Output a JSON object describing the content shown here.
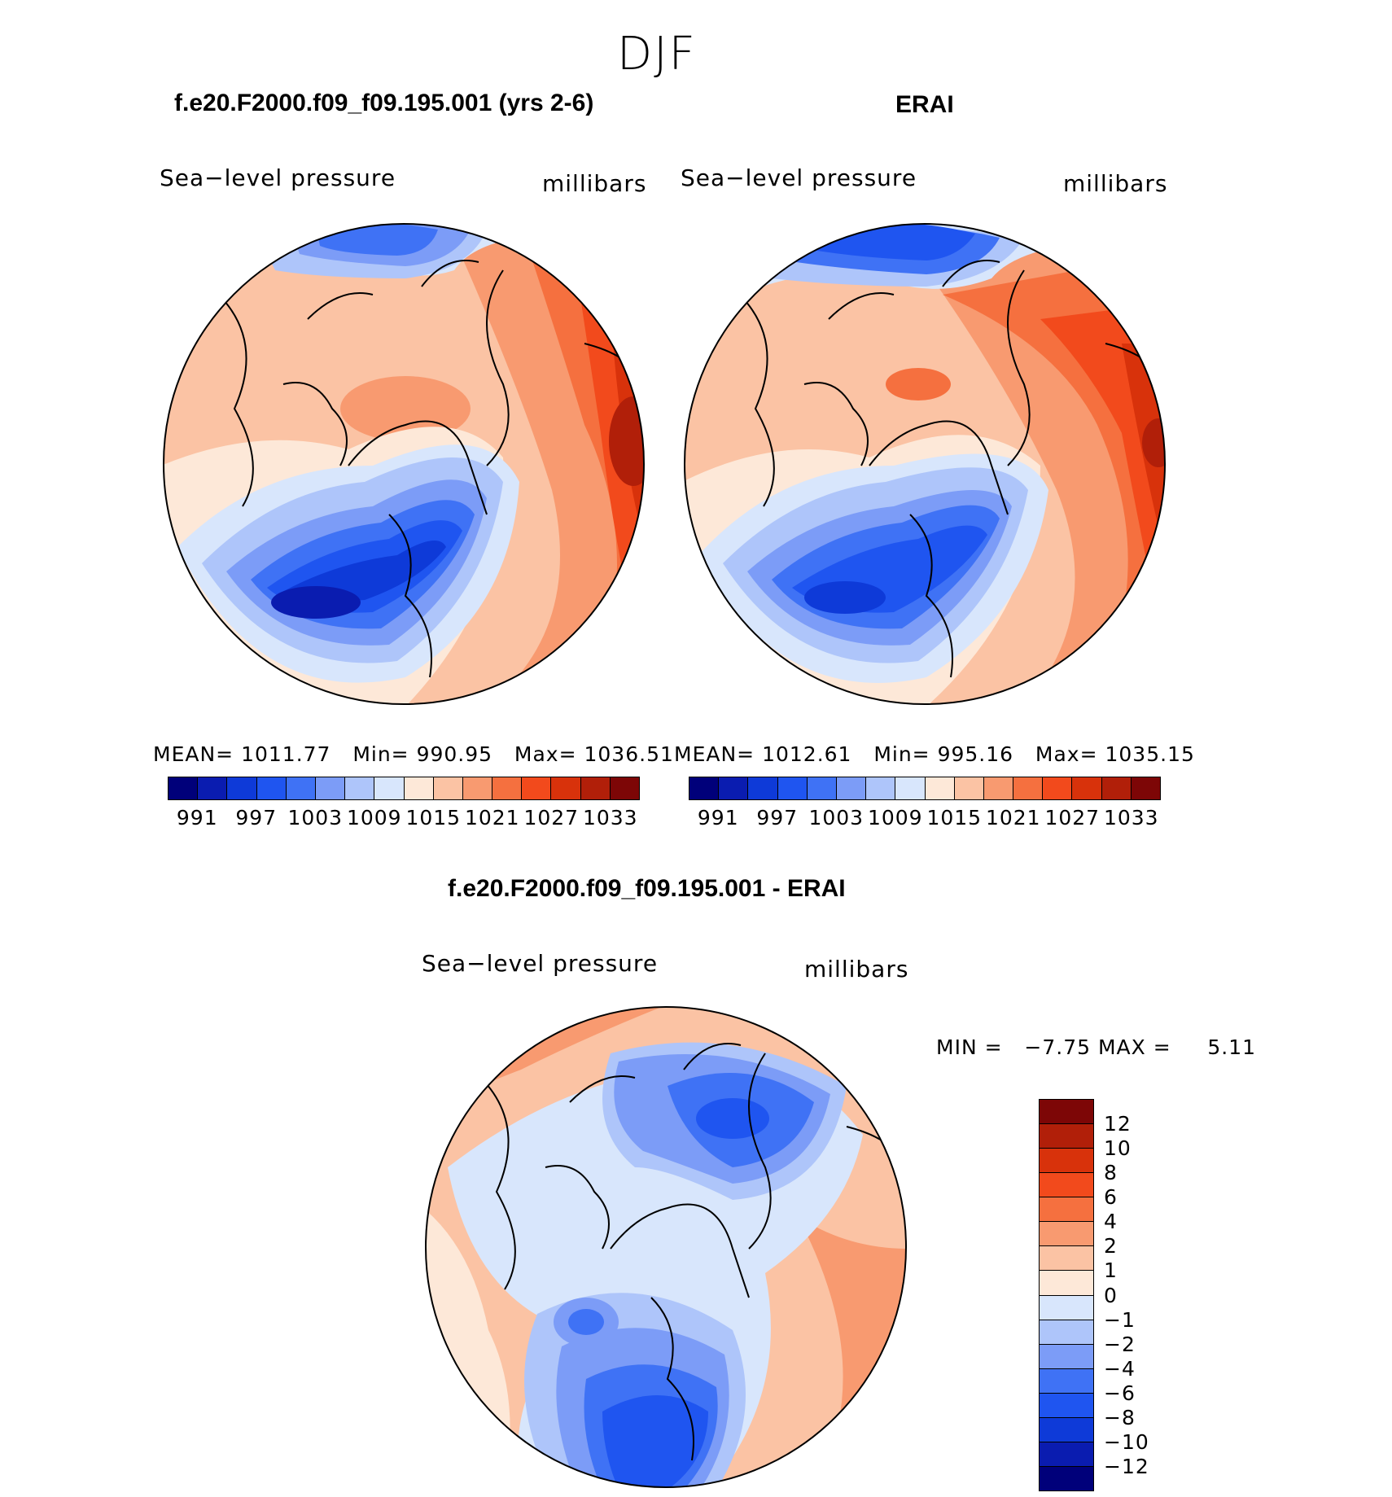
{
  "season": "DJF",
  "panels": [
    {
      "title": "f.e20.F2000.f09_f09.195.001 (yrs 2-6)",
      "left_label": "Sea−level pressure",
      "right_label": "millibars",
      "stats": {
        "mean_label": "MEAN=",
        "mean": "1011.77",
        "min_label": "Min=",
        "min": "990.95",
        "max_label": "Max=",
        "max": "1036.51"
      }
    },
    {
      "title": "ERAI",
      "left_label": "Sea−level pressure",
      "right_label": "millibars",
      "stats": {
        "mean_label": "MEAN=",
        "mean": "1012.61",
        "min_label": "Min=",
        "min": "995.16",
        "max_label": "Max=",
        "max": "1035.15"
      }
    },
    {
      "title": "f.e20.F2000.f09_f09.195.001 - ERAI",
      "left_label": "Sea−level pressure",
      "right_label": "millibars",
      "stats": {
        "min_label": "MIN =",
        "min": "−7.75",
        "max_label": "MAX =",
        "max": "5.11"
      }
    }
  ],
  "slp_colorbar": {
    "colors": [
      "#00007a",
      "#0a1cb0",
      "#0e3ad8",
      "#1f55f0",
      "#3f72f5",
      "#7c9cf7",
      "#aec5fa",
      "#d8e6fc",
      "#fde8d8",
      "#fbc3a4",
      "#f89a70",
      "#f5703f",
      "#f24a1c",
      "#d8320b",
      "#b11f09",
      "#7d0606"
    ],
    "tick_labels": [
      "991",
      "997",
      "1003",
      "1009",
      "1015",
      "1021",
      "1027",
      "1033"
    ]
  },
  "diff_colorbar": {
    "colors": [
      "#7d0606",
      "#b11f09",
      "#d8320b",
      "#f24a1c",
      "#f5703f",
      "#f89a70",
      "#fbc3a4",
      "#fde8d8",
      "#d8e6fc",
      "#aec5fa",
      "#7c9cf7",
      "#3f72f5",
      "#1f55f0",
      "#0e3ad8",
      "#0a1cb0",
      "#00007a"
    ],
    "tick_labels": [
      "12",
      "10",
      "8",
      "6",
      "4",
      "2",
      "1",
      "0",
      "−1",
      "−2",
      "−4",
      "−6",
      "−8",
      "−10",
      "−12"
    ]
  }
}
